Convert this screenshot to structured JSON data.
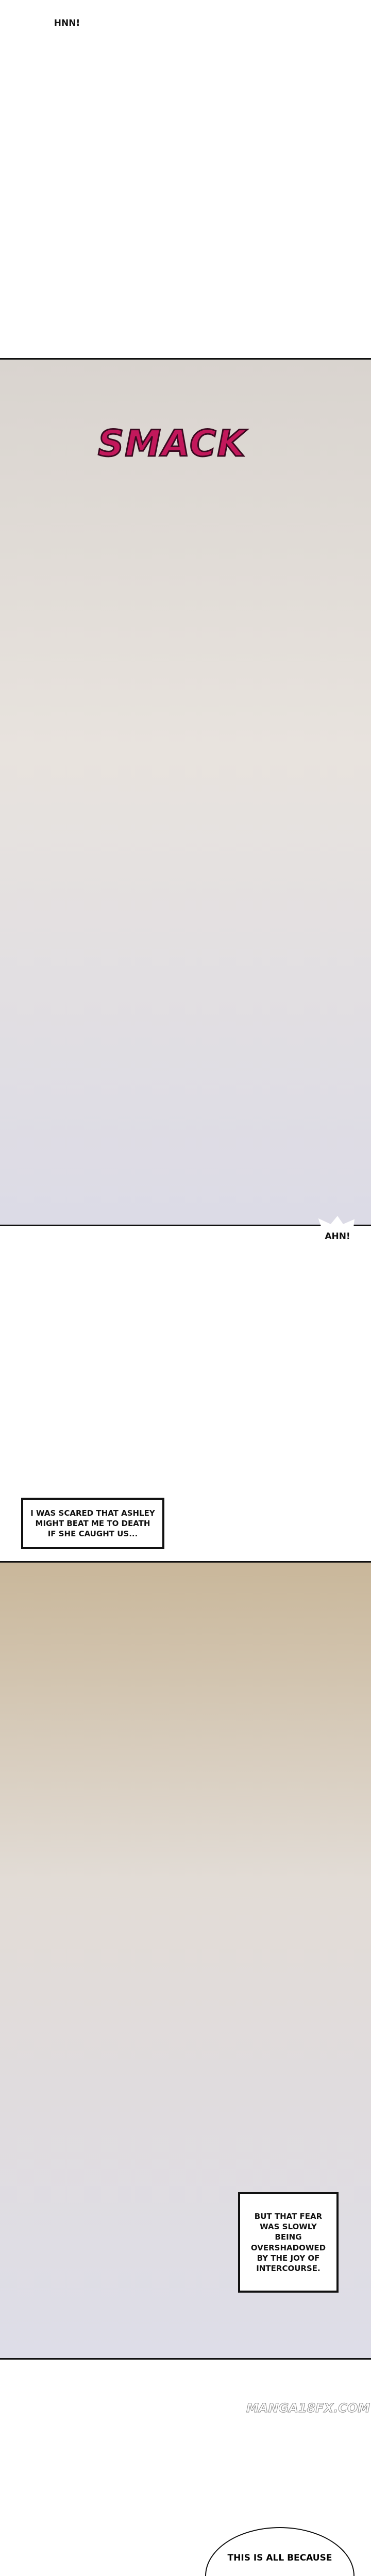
{
  "bubbles": {
    "hnn": "HNN!",
    "ahn": "AHN!",
    "bottom": "THIS IS ALL BECAUSE"
  },
  "sfx": {
    "smack": "SMACK"
  },
  "narration": [
    "I WAS SCARED THAT ASHLEY MIGHT BEAT ME TO DEATH IF SHE CAUGHT US...",
    "BUT THAT FEAR WAS SLOWLY BEING OVERSHADOWED BY THE JOY OF INTERCOURSE."
  ],
  "watermark": "MANGA18FX.COM"
}
